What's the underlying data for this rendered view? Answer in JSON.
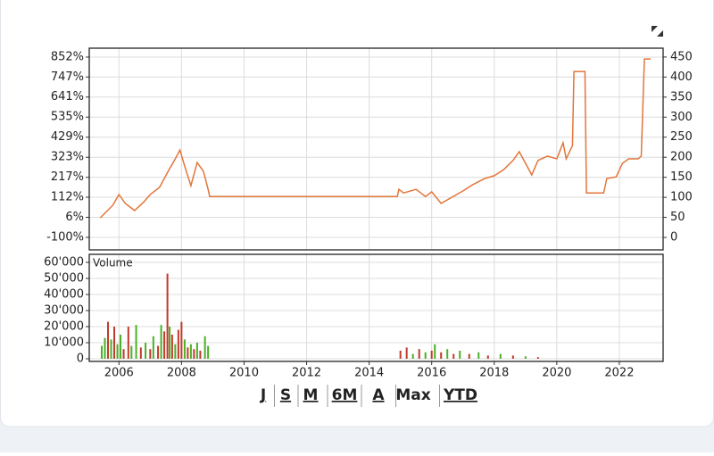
{
  "chart_data": [
    {
      "type": "line",
      "x": [
        2005.4,
        2005.8,
        2006.0,
        2006.2,
        2006.5,
        2006.8,
        2007.0,
        2007.3,
        2007.6,
        2007.8,
        2007.95,
        2008.1,
        2008.3,
        2008.5,
        2008.7,
        2008.85,
        2008.9,
        2014.9,
        2014.95,
        2015.1,
        2015.5,
        2015.8,
        2016.0,
        2016.3,
        2016.6,
        2017.0,
        2017.3,
        2017.7,
        2018.0,
        2018.3,
        2018.6,
        2018.8,
        2019.0,
        2019.2,
        2019.4,
        2019.7,
        2020.0,
        2020.2,
        2020.3,
        2020.5,
        2020.55,
        2020.9,
        2020.95,
        2021.5,
        2021.6,
        2021.9,
        2022.1,
        2022.3,
        2022.6,
        2022.7,
        2022.8,
        2023.0
      ],
      "values": [
        49,
        80,
        107,
        85,
        67,
        89,
        107,
        125,
        169,
        196,
        218,
        178,
        129,
        187,
        165,
        120,
        102,
        102,
        120,
        111,
        120,
        102,
        114,
        85,
        98,
        116,
        131,
        147,
        154,
        169,
        192,
        214,
        185,
        156,
        192,
        203,
        196,
        236,
        196,
        229,
        414,
        414,
        111,
        111,
        147,
        151,
        185,
        196,
        196,
        203,
        445,
        445
      ],
      "color": "#e2763b",
      "axis": "y2",
      "xlim": [
        2005.05,
        2023.4
      ],
      "xticks": [
        2006,
        2008,
        2010,
        2012,
        2014,
        2016,
        2018,
        2020,
        2022
      ],
      "ylim": [
        -166,
        899
      ],
      "yticks": [
        {
          "value": 852,
          "label": "852%"
        },
        {
          "value": 747,
          "label": "747%"
        },
        {
          "value": 641,
          "label": "641%"
        },
        {
          "value": 535,
          "label": "535%"
        },
        {
          "value": 429,
          "label": "429%"
        },
        {
          "value": 323,
          "label": "323%"
        },
        {
          "value": 217,
          "label": "217%"
        },
        {
          "value": 112,
          "label": "112%"
        },
        {
          "value": 6,
          "label": "6%"
        },
        {
          "value": -100,
          "label": "-100%"
        }
      ],
      "y2lim": [
        -31,
        472
      ],
      "y2ticks": [
        450,
        400,
        350,
        300,
        250,
        200,
        150,
        100,
        50,
        0
      ],
      "grid": true
    },
    {
      "type": "bar",
      "title": "Volume",
      "x": [
        2005.45,
        2005.55,
        2005.65,
        2005.75,
        2005.85,
        2005.95,
        2006.05,
        2006.15,
        2006.3,
        2006.4,
        2006.55,
        2006.7,
        2006.85,
        2007.0,
        2007.1,
        2007.25,
        2007.35,
        2007.45,
        2007.55,
        2007.62,
        2007.7,
        2007.8,
        2007.9,
        2008.0,
        2008.1,
        2008.2,
        2008.3,
        2008.4,
        2008.5,
        2008.6,
        2008.75,
        2008.85,
        2015.0,
        2015.2,
        2015.4,
        2015.6,
        2015.8,
        2016.0,
        2016.1,
        2016.3,
        2016.5,
        2016.7,
        2016.9,
        2017.2,
        2017.5,
        2017.8,
        2018.2,
        2018.6,
        2019.0,
        2019.4
      ],
      "values": [
        8000,
        13000,
        23000,
        12000,
        20000,
        9000,
        15000,
        6000,
        20000,
        8000,
        21000,
        7000,
        10000,
        6000,
        14000,
        8000,
        21000,
        17000,
        53000,
        20000,
        15000,
        9000,
        18000,
        23000,
        12000,
        7000,
        9000,
        6000,
        10000,
        5000,
        14000,
        8000,
        5000,
        7000,
        3000,
        6000,
        4000,
        5000,
        9000,
        4000,
        6000,
        3000,
        5000,
        3000,
        4000,
        2000,
        3000,
        2000,
        1500,
        1000
      ],
      "colors": [
        "#4caf26",
        "#4caf26",
        "#c0392b",
        "#4caf26",
        "#c0392b",
        "#4caf26",
        "#4caf26",
        "#c0392b",
        "#c0392b",
        "#4caf26",
        "#4caf26",
        "#c0392b",
        "#4caf26",
        "#c0392b",
        "#4caf26",
        "#c0392b",
        "#4caf26",
        "#c0392b",
        "#c0392b",
        "#4caf26",
        "#c0392b",
        "#4caf26",
        "#c0392b",
        "#c0392b",
        "#4caf26",
        "#c0392b",
        "#4caf26",
        "#c0392b",
        "#4caf26",
        "#c0392b",
        "#4caf26",
        "#4caf26",
        "#c0392b",
        "#c0392b",
        "#4caf26",
        "#c0392b",
        "#4caf26",
        "#c0392b",
        "#4caf26",
        "#c0392b",
        "#4caf26",
        "#c0392b",
        "#4caf26",
        "#c0392b",
        "#4caf26",
        "#c0392b",
        "#4caf26",
        "#c0392b",
        "#4caf26",
        "#c0392b"
      ],
      "xlim": [
        2005.05,
        2023.4
      ],
      "xticks": [
        2006,
        2008,
        2010,
        2012,
        2014,
        2016,
        2018,
        2020,
        2022
      ],
      "ylim": [
        -1667,
        65000
      ],
      "yticks": [
        {
          "value": 60000,
          "label": "60'000"
        },
        {
          "value": 50000,
          "label": "50'000"
        },
        {
          "value": 40000,
          "label": "40'000"
        },
        {
          "value": 30000,
          "label": "30'000"
        },
        {
          "value": 20000,
          "label": "20'000"
        },
        {
          "value": 10000,
          "label": "10'000"
        },
        0
      ],
      "grid": true
    }
  ],
  "range_buttons": [
    "J",
    "S",
    "M",
    "6M",
    "A",
    "Max",
    "YTD"
  ],
  "active_button": 5
}
